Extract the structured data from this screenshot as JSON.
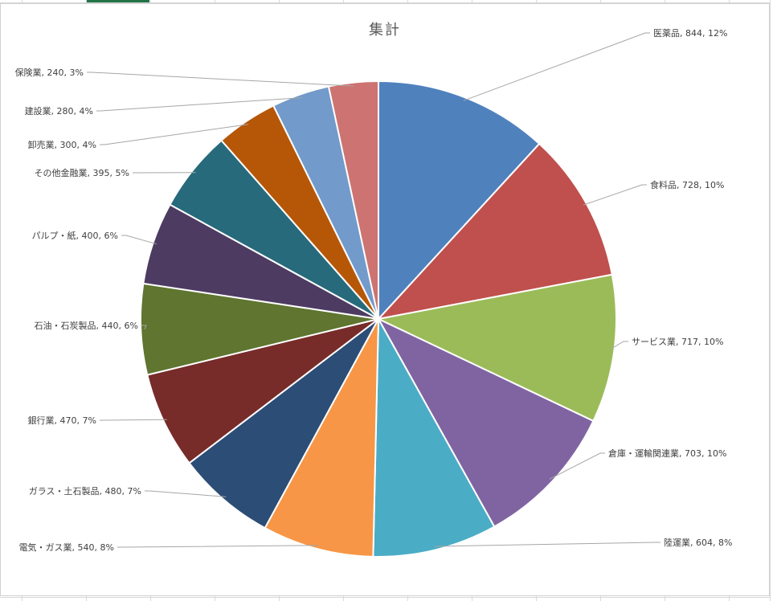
{
  "chart_data": {
    "type": "pie",
    "title": "集計",
    "data_label_format": "{category}, {value}, {percent}",
    "categories": [
      "医薬品",
      "食料品",
      "サービス業",
      "倉庫・運輸関連業",
      "陸運業",
      "電気・ガス業",
      "ガラス・土石製品",
      "銀行業",
      "石油・石炭製品",
      "パルプ・紙",
      "その他金融業",
      "卸売業",
      "建設業",
      "保険業"
    ],
    "values": [
      844,
      728,
      717,
      703,
      604,
      540,
      480,
      470,
      440,
      400,
      395,
      300,
      280,
      240
    ],
    "labels": [
      "医薬品, 844, 12%",
      "食料品, 728, 10%",
      "サービス業, 717, 10%",
      "倉庫・運輸関連業, 703, 10%",
      "陸運業, 604, 8%",
      "電気・ガス業, 540, 8%",
      "ガラス・土石製品, 480, 7%",
      "銀行業, 470, 7%",
      "石油・石炭製品, 440, 6%",
      "パルプ・紙, 400, 6%",
      "その他金融業, 395, 5%",
      "卸売業, 300, 4%",
      "建設業, 280, 4%",
      "保険業, 240, 3%"
    ],
    "colors": [
      "#4f81bd",
      "#c0504d",
      "#9bbb59",
      "#8064a2",
      "#4bacc6",
      "#f79646",
      "#2c4d75",
      "#772c2a",
      "#5f7530",
      "#4d3b62",
      "#276a7c",
      "#b65708",
      "#729aca",
      "#cd7371"
    ],
    "legend": "none",
    "start_angle": "12 o'clock, clockwise"
  }
}
